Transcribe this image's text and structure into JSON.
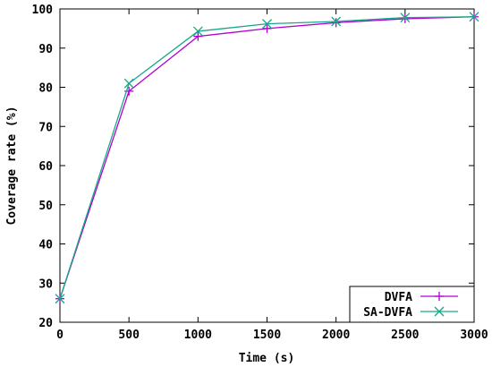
{
  "chart_data": {
    "type": "line",
    "title": "",
    "xlabel": "Time (s)",
    "ylabel": "Coverage rate (%)",
    "xlim": [
      0,
      3000
    ],
    "ylim": [
      20,
      100
    ],
    "xticks": [
      0,
      500,
      1000,
      1500,
      2000,
      2500,
      3000
    ],
    "yticks": [
      20,
      30,
      40,
      50,
      60,
      70,
      80,
      90,
      100
    ],
    "grid": false,
    "legend_position": "bottom-right",
    "x": [
      0,
      500,
      1000,
      1500,
      2000,
      2500,
      3000
    ],
    "series": [
      {
        "name": "DVFA",
        "values": [
          26,
          79,
          93,
          95,
          96.5,
          97.5,
          98
        ],
        "color": "#b000d0",
        "marker": "plus"
      },
      {
        "name": "SA-DVFA",
        "values": [
          26,
          81,
          94.3,
          96.2,
          96.8,
          97.8,
          98
        ],
        "color": "#1aa88a",
        "marker": "cross"
      }
    ]
  }
}
